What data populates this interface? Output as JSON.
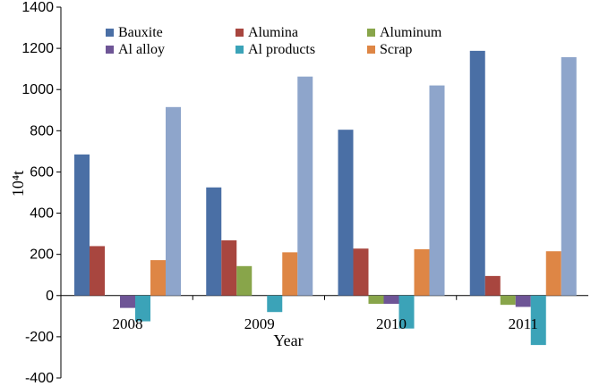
{
  "chart_data": {
    "type": "bar",
    "title": "",
    "xlabel": "Year",
    "ylabel": "10⁴t",
    "ylim": [
      -400,
      1400
    ],
    "yticks": [
      -400,
      -200,
      0,
      200,
      400,
      600,
      800,
      1000,
      1200,
      1400
    ],
    "categories": [
      "2008",
      "2009",
      "2010",
      "2011"
    ],
    "legend_position": "top",
    "series": [
      {
        "name": "Bauxite",
        "color": "#4a6fa5",
        "values": [
          685,
          525,
          805,
          1188
        ]
      },
      {
        "name": "Alumina",
        "color": "#a8463f",
        "values": [
          240,
          268,
          228,
          95
        ]
      },
      {
        "name": "Aluminum",
        "color": "#88a54a",
        "values": [
          0,
          143,
          -40,
          -45
        ]
      },
      {
        "name": "Al alloy",
        "color": "#6e5596",
        "values": [
          -60,
          0,
          -40,
          -55
        ]
      },
      {
        "name": "Al products",
        "color": "#3ba3b8",
        "values": [
          -125,
          -80,
          -160,
          -240
        ]
      },
      {
        "name": "Scrap",
        "color": "#de8645",
        "values": [
          172,
          210,
          225,
          215
        ]
      },
      {
        "name": "",
        "color": "#8ea5cb",
        "values": [
          915,
          1063,
          1020,
          1157
        ]
      }
    ]
  }
}
